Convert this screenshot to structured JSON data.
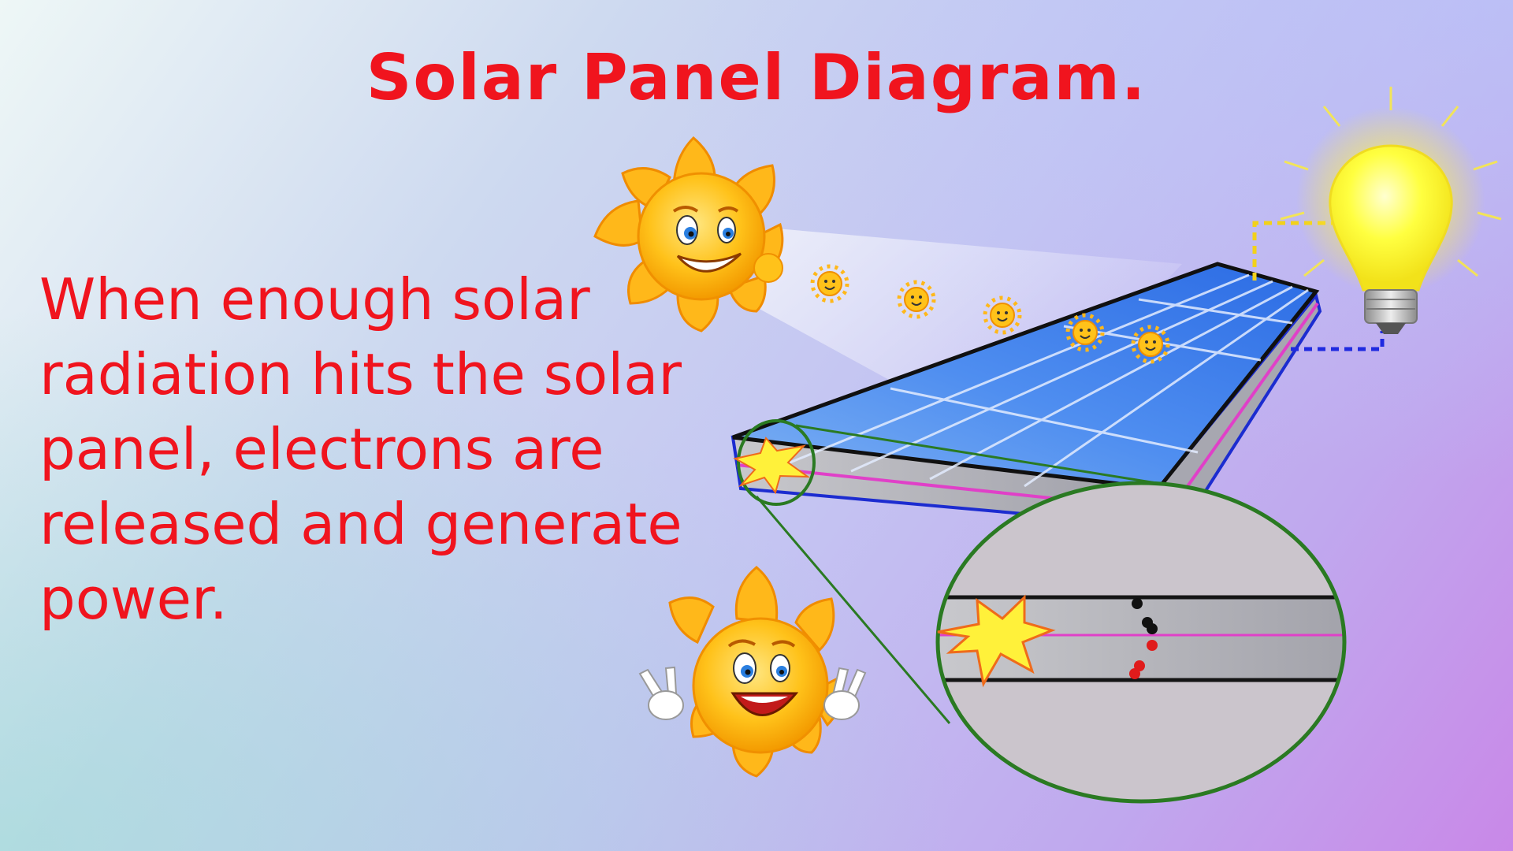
{
  "slide": {
    "title": "Solar Panel Diagram.",
    "body": "When enough solar radiation hits the solar panel, electrons are released and generate power."
  },
  "colors": {
    "text": "#f0141e",
    "panel_top": "#3a7de6",
    "panel_side": "#b8b8be",
    "panel_edge": "#1c2cd0",
    "pink_layer": "#e040c8",
    "magnifier_ring": "#2a7a22",
    "sun": "#ffc51a",
    "bulb": "#ffff33",
    "wire_positive": "#f2d11a",
    "wire_negative": "#1f2ae0",
    "electron": "#111111",
    "hole": "#e01b1b",
    "burst": "#fff13a"
  },
  "icons": {
    "main_sun": "smiling-sun-icon",
    "small_sun": "sun-ray-icon",
    "bottom_sun": "peace-sign-sun-icon",
    "bulb": "light-bulb-icon",
    "burst": "starburst-icon",
    "electron": "electron-icon",
    "hole": "hole-icon"
  }
}
